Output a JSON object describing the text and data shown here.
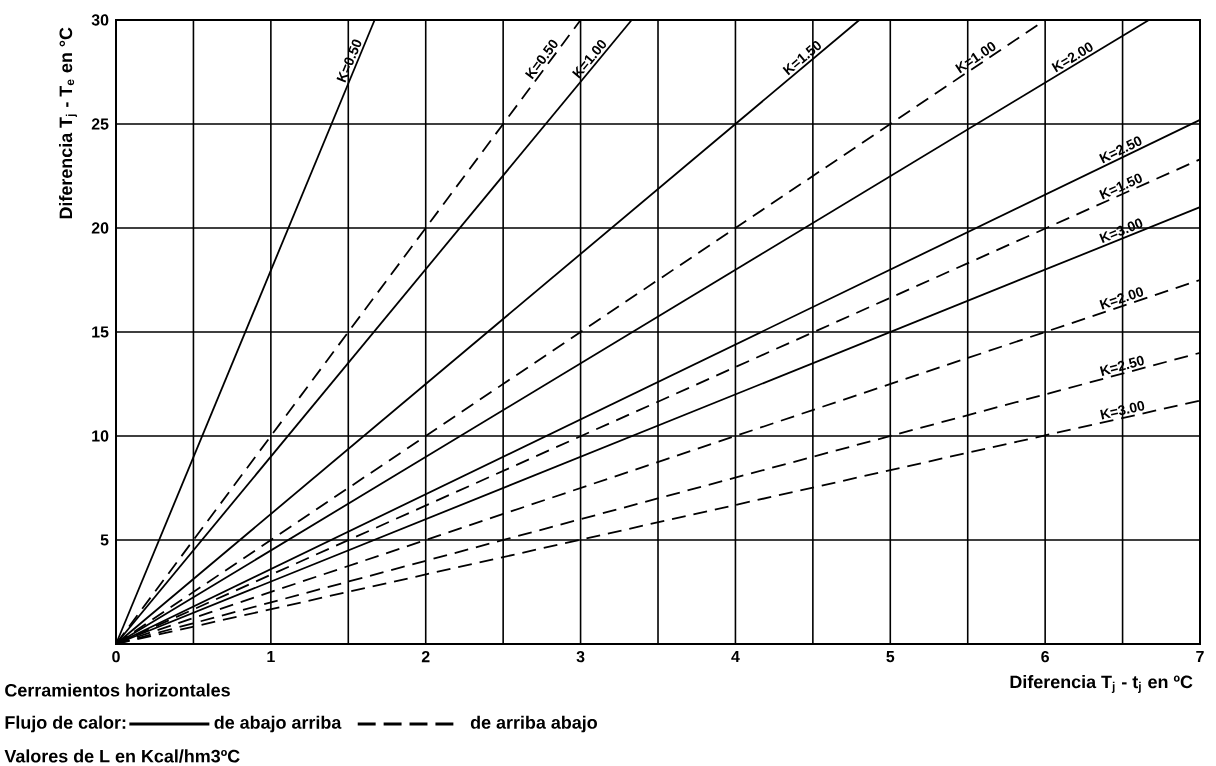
{
  "chart_data": {
    "type": "line",
    "xlabel": "Diferencia T$_{j}$ - t$_{j}$ en ºC",
    "ylabel": "Diferencia T$_{j}$ - T$_{e}$ en °C",
    "xlim": [
      0,
      7
    ],
    "ylim": [
      0,
      30
    ],
    "xticks": [
      0,
      1,
      2,
      3,
      4,
      5,
      6,
      7
    ],
    "yticks": [
      5,
      10,
      15,
      20,
      25,
      30
    ],
    "grid": true,
    "annotations": [
      "Cerramientos horizontales",
      "Flujo de calor:",
      "de abajo  arriba",
      "de arriba abajo",
      "Valores de L en Kcal/hm3ºC"
    ],
    "series": [
      {
        "name": "K=0.50",
        "color": "#000000",
        "line_style": "solid",
        "x": [
          0,
          1.67
        ],
        "values": [
          0,
          30
        ]
      },
      {
        "name": "K=0.50",
        "color": "#000000",
        "line_style": "dashed",
        "x": [
          0,
          3.0
        ],
        "values": [
          0,
          30
        ]
      },
      {
        "name": "K=1.00",
        "color": "#000000",
        "line_style": "solid",
        "x": [
          0,
          3.33
        ],
        "values": [
          0,
          30
        ]
      },
      {
        "name": "K=1.50",
        "color": "#000000",
        "line_style": "solid",
        "x": [
          0,
          4.8
        ],
        "values": [
          0,
          30
        ]
      },
      {
        "name": "K=1.00",
        "color": "#000000",
        "line_style": "dashed",
        "x": [
          0,
          6.0
        ],
        "values": [
          0,
          30
        ]
      },
      {
        "name": "K=2.00",
        "color": "#000000",
        "line_style": "solid",
        "x": [
          0,
          6.67
        ],
        "values": [
          0,
          30
        ]
      },
      {
        "name": "K=2.50",
        "color": "#000000",
        "line_style": "solid",
        "x": [
          0,
          7
        ],
        "values": [
          0,
          25.2
        ]
      },
      {
        "name": "K=1.50",
        "color": "#000000",
        "line_style": "dashed",
        "x": [
          0,
          7
        ],
        "values": [
          0,
          23.3
        ]
      },
      {
        "name": "K=3.00",
        "color": "#000000",
        "line_style": "solid",
        "x": [
          0,
          7
        ],
        "values": [
          0,
          21
        ]
      },
      {
        "name": "K=2.00",
        "color": "#000000",
        "line_style": "dashed",
        "x": [
          0,
          7
        ],
        "values": [
          0,
          17.5
        ]
      },
      {
        "name": "K=2.50",
        "color": "#000000",
        "line_style": "dashed",
        "x": [
          0,
          7
        ],
        "values": [
          0,
          14
        ]
      },
      {
        "name": "K=3.00",
        "color": "#000000",
        "line_style": "dashed",
        "x": [
          0,
          7
        ],
        "values": [
          0,
          11.7
        ]
      }
    ]
  }
}
